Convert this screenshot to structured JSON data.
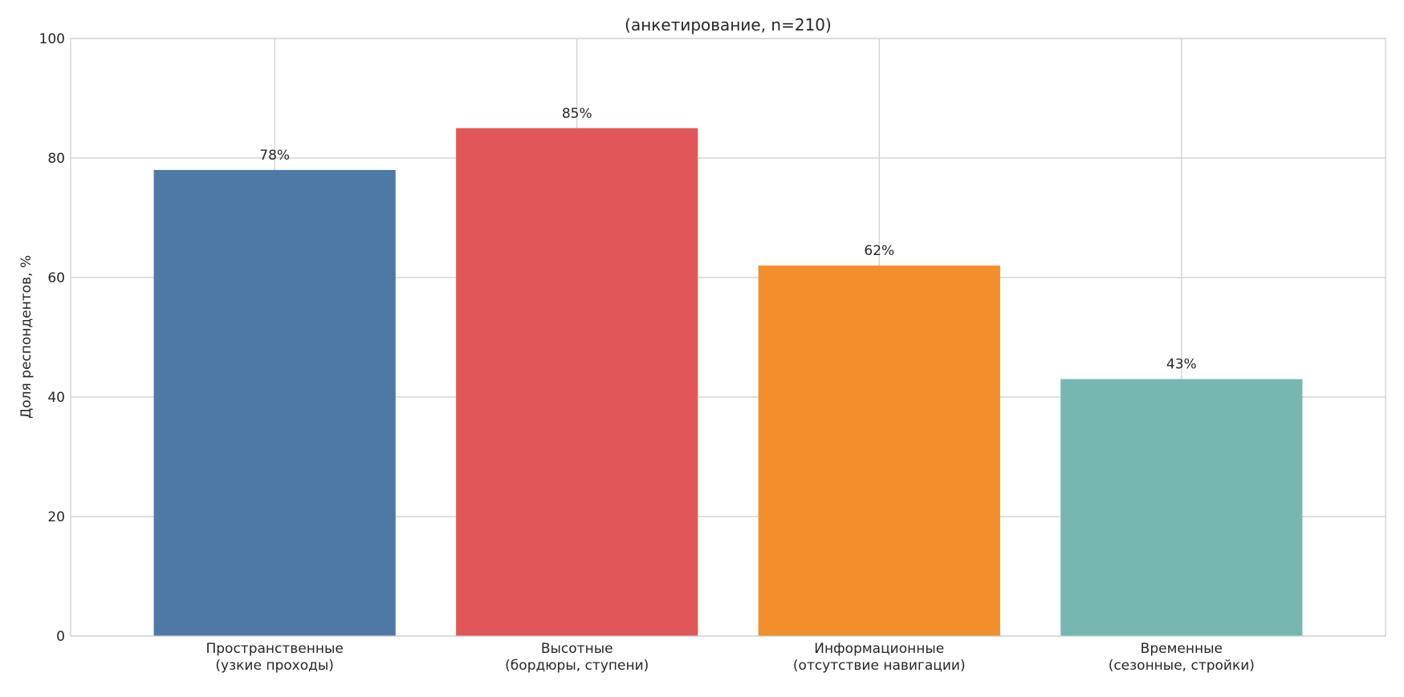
{
  "chart_data": {
    "type": "bar",
    "title": "(анкетирование, n=210)",
    "xlabel": "",
    "ylabel": "Доля респондентов, %",
    "ylim": [
      0,
      100
    ],
    "yticks": [
      0,
      20,
      40,
      60,
      80,
      100
    ],
    "grid": true,
    "categories": [
      [
        "Пространственные",
        "(узкие проходы)"
      ],
      [
        "Высотные",
        "(бордюры, ступени)"
      ],
      [
        "Информационные",
        "(отсутствие навигации)"
      ],
      [
        "Временные",
        "(сезонные, стройки)"
      ]
    ],
    "values": [
      78,
      85,
      62,
      43
    ],
    "value_labels": [
      "78%",
      "85%",
      "62%",
      "43%"
    ],
    "colors": [
      "#4e79a7",
      "#e15759",
      "#f28e2b",
      "#76b7b2"
    ]
  }
}
